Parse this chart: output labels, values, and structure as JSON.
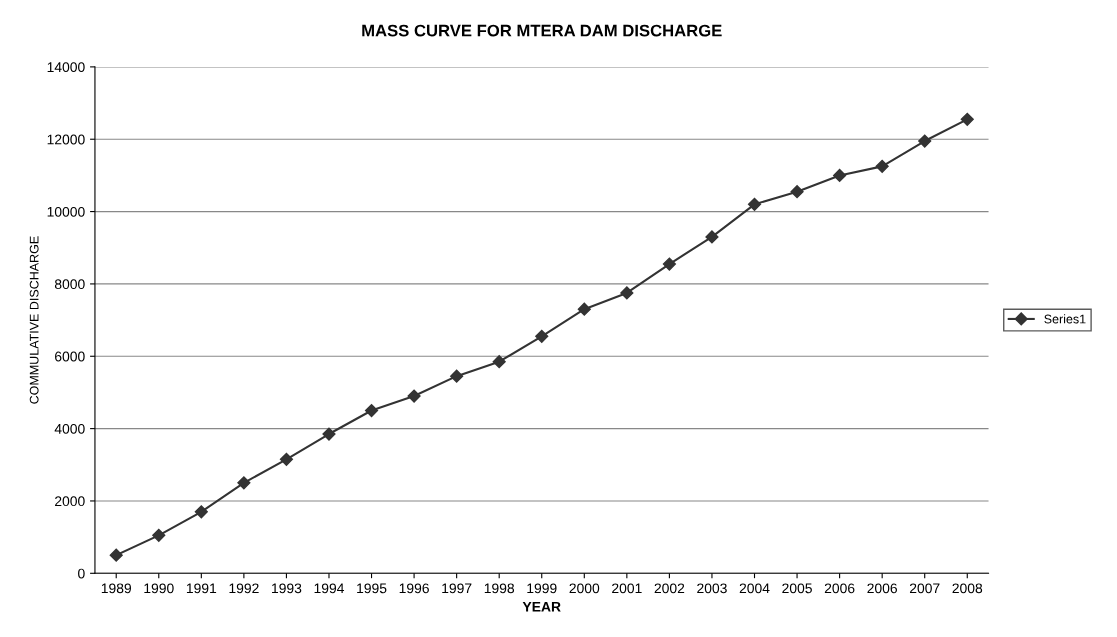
{
  "chart_data": {
    "type": "line",
    "title": "MASS CURVE FOR MTERA DAM DISCHARGE",
    "xlabel": "YEAR",
    "ylabel": "COMMULATIVE DISCHARGE",
    "categories": [
      "1989",
      "1990",
      "1991",
      "1992",
      "1993",
      "1994",
      "1995",
      "1996",
      "1997",
      "1998",
      "1999",
      "2000",
      "2001",
      "2002",
      "2003",
      "2004",
      "2005",
      "2006",
      "2006",
      "2007",
      "2008"
    ],
    "series": [
      {
        "name": "Series1",
        "color": "#333333",
        "values": [
          500,
          1050,
          1700,
          2500,
          3150,
          3850,
          4500,
          4900,
          5450,
          5850,
          6550,
          7300,
          7750,
          8550,
          9300,
          10200,
          10550,
          11000,
          11250,
          11950,
          12550
        ]
      }
    ],
    "ylim": [
      0,
      14000
    ],
    "yticks": [
      0,
      2000,
      4000,
      6000,
      8000,
      10000,
      12000,
      14000
    ],
    "grid": "y",
    "legend": "right",
    "marker": "diamond",
    "line_style": "solid"
  }
}
